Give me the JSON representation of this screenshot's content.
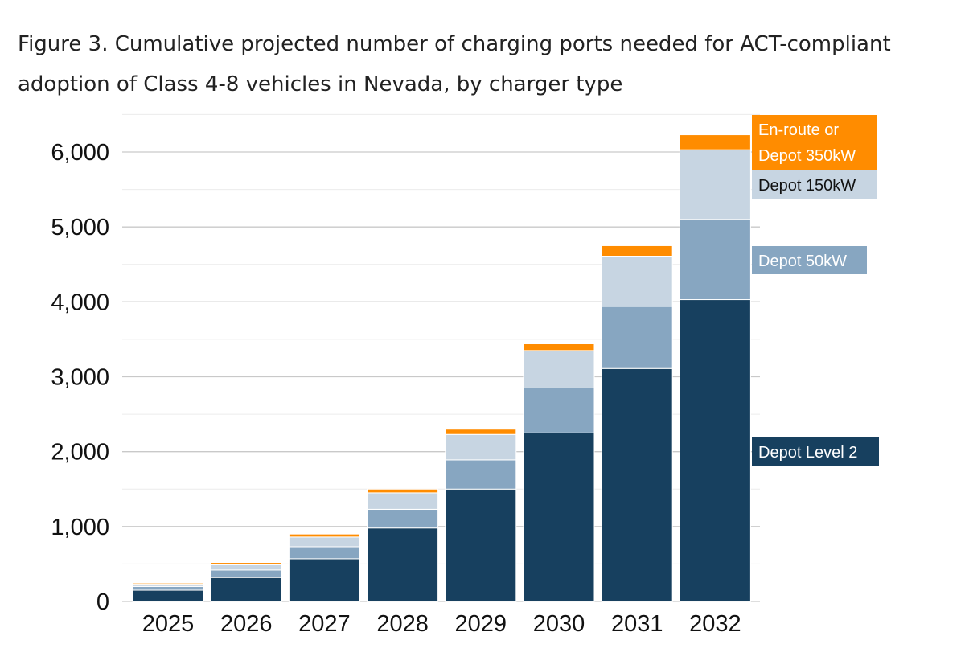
{
  "figure": {
    "title": "Figure 3. Cumulative projected number of charging ports needed for ACT-compliant adoption of Class 4-8 vehicles in Nevada, by charger type"
  },
  "chart_data": {
    "type": "bar",
    "stacked": true,
    "title": "Figure 3. Cumulative projected number of charging ports needed for ACT-compliant adoption of Class 4-8 vehicles in Nevada, by charger type",
    "categories": [
      "2025",
      "2026",
      "2027",
      "2028",
      "2029",
      "2030",
      "2031",
      "2032"
    ],
    "series": [
      {
        "name": "Depot Level 2",
        "color": "#17405f",
        "values": [
          150,
          320,
          570,
          980,
          1500,
          2250,
          3110,
          4030
        ]
      },
      {
        "name": "Depot 50kW",
        "color": "#87a6c1",
        "values": [
          50,
          100,
          160,
          250,
          390,
          600,
          830,
          1070
        ]
      },
      {
        "name": "Depot 150kW",
        "color": "#c7d5e2",
        "values": [
          30,
          70,
          130,
          220,
          340,
          500,
          670,
          930
        ]
      },
      {
        "name": "En-route or Depot 350kW",
        "color": "#ff8c00",
        "values": [
          15,
          30,
          40,
          50,
          70,
          90,
          140,
          200
        ]
      }
    ],
    "yticks": [
      0,
      1000,
      2000,
      3000,
      4000,
      5000,
      6000
    ],
    "ytick_labels": [
      "0",
      "1,000",
      "2,000",
      "3,000",
      "4,000",
      "5,000",
      "6,000"
    ],
    "ylim": [
      0,
      6500
    ],
    "xlabel": "",
    "ylabel": "",
    "grid": true,
    "legend_placement": "right, aligned with top bar segments"
  }
}
